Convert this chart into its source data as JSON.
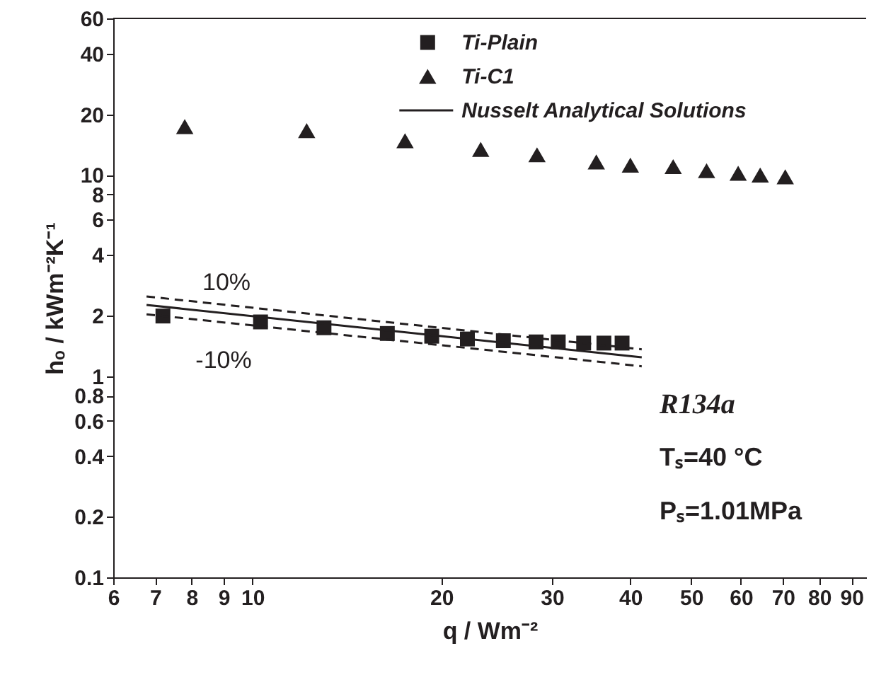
{
  "chart_data": {
    "type": "scatter",
    "xlabel": "q / Wm⁻²",
    "ylabel": "hₒ / kWm⁻²K⁻¹",
    "log": "xy",
    "grid": false,
    "legend": "top right",
    "xlim": [
      6,
      95
    ],
    "xticks": [
      6,
      7,
      8,
      9,
      10,
      20,
      30,
      40,
      50,
      60,
      70,
      80,
      90
    ],
    "ylim": [
      0.1,
      60
    ],
    "yticks": [
      0.1,
      0.2,
      0.4,
      0.6,
      0.8,
      1,
      2,
      4,
      6,
      8,
      10,
      20,
      40,
      60
    ],
    "series": [
      {
        "name": "Ti-Plain",
        "marker": "square",
        "color": "#231f20",
        "x": [
          7.2,
          10.3,
          13.0,
          16.4,
          19.3,
          22.0,
          25.1,
          28.3,
          30.7,
          33.7,
          36.3,
          38.8
        ],
        "values": [
          1.99,
          1.86,
          1.74,
          1.63,
          1.58,
          1.53,
          1.5,
          1.48,
          1.48,
          1.46,
          1.46,
          1.46
        ]
      },
      {
        "name": "Ti-C1",
        "marker": "triangle",
        "color": "#231f20",
        "x": [
          7.8,
          12.2,
          17.5,
          23.1,
          28.4,
          35.3,
          40.0,
          46.8,
          52.9,
          59.4,
          64.4,
          70.6
        ],
        "values": [
          17.4,
          16.6,
          14.8,
          13.4,
          12.6,
          11.6,
          11.2,
          11.0,
          10.5,
          10.2,
          10.0,
          9.8
        ]
      },
      {
        "name": "Nusselt Analytical Solutions",
        "type": "line",
        "line_style": "solid",
        "color": "#231f20",
        "x": [
          6.78,
          41.7
        ],
        "values": [
          2.26,
          1.24
        ]
      },
      {
        "type": "line",
        "line_style": "dashed",
        "color": "#231f20",
        "x": [
          6.78,
          41.7
        ],
        "values": [
          2.49,
          1.36
        ]
      },
      {
        "type": "line",
        "line_style": "dashed",
        "color": "#231f20",
        "x": [
          6.78,
          41.7
        ],
        "values": [
          2.03,
          1.12
        ]
      }
    ],
    "annotations": [
      "10%",
      "-10%",
      "R134a",
      "Tₛ=40 °C",
      "Pₛ=1.01MPa"
    ]
  }
}
